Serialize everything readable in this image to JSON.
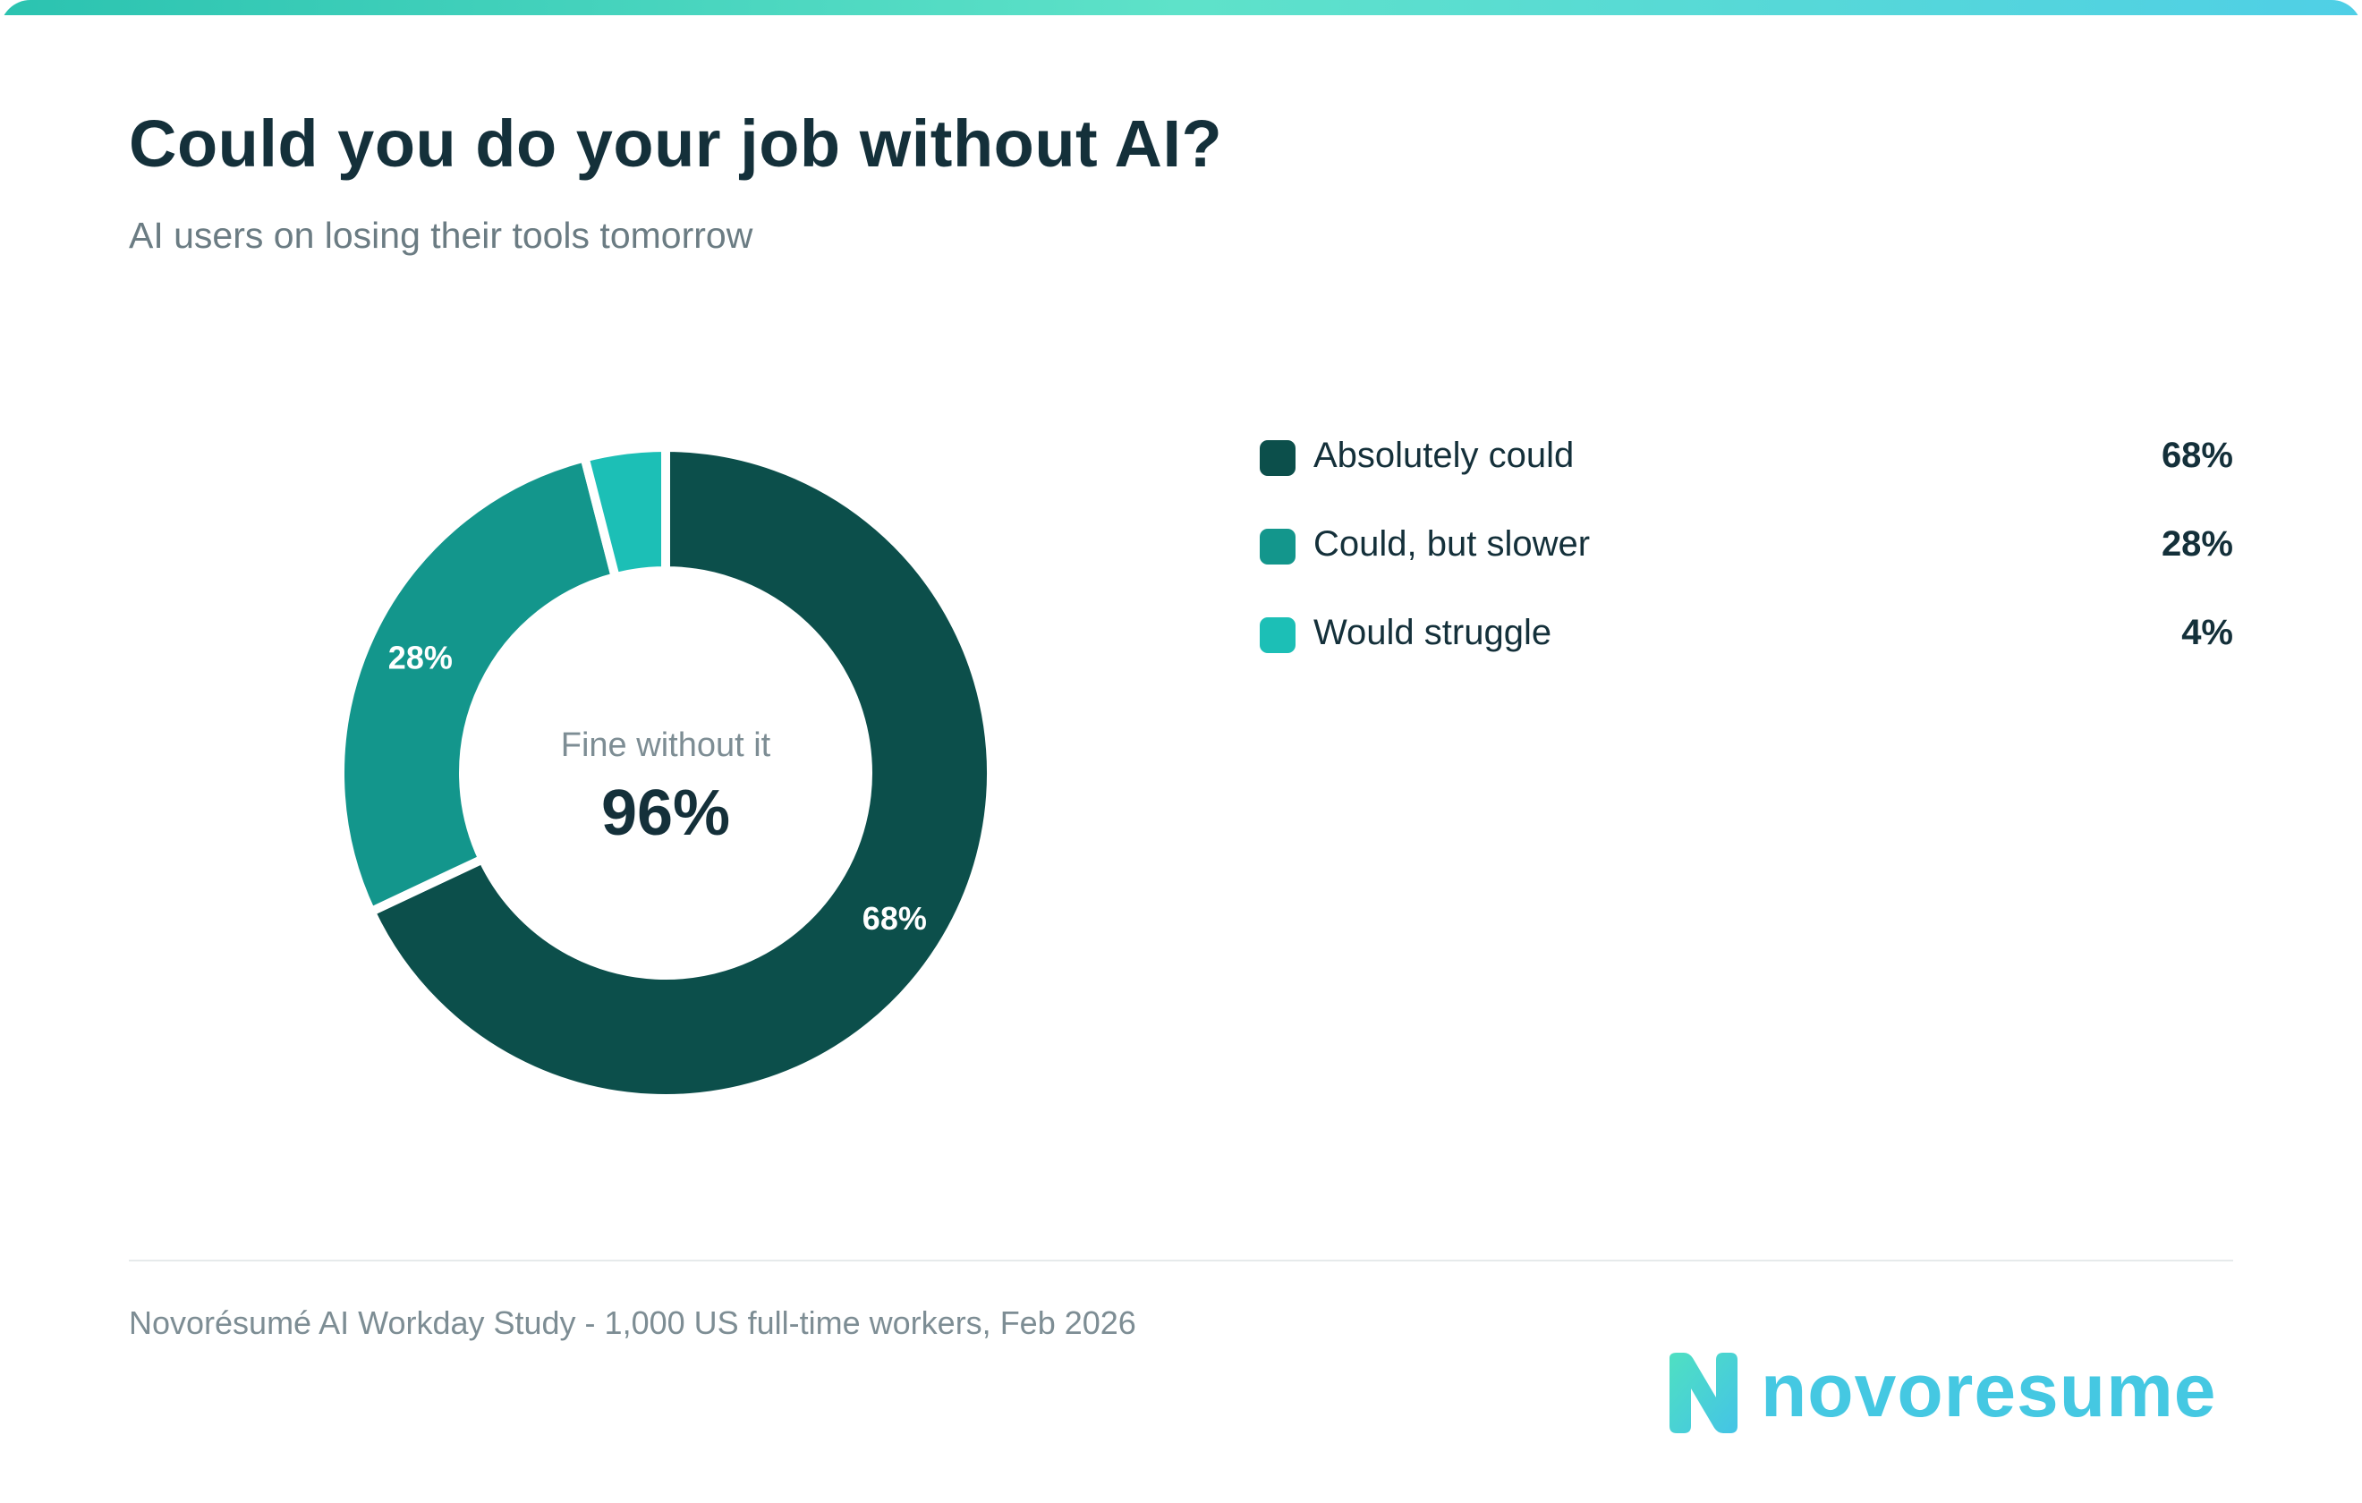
{
  "header": {
    "title": "Could you do your job without AI?",
    "subtitle": "AI users on losing their tools tomorrow"
  },
  "center": {
    "label": "Fine without it",
    "value": "96%"
  },
  "footer": {
    "source": "Novorésumé AI Workday Study - 1,000 US full-time workers, Feb 2026"
  },
  "logo": {
    "text": "novoresume"
  },
  "colors": {
    "accent_gradient": [
      "#2bc3b0",
      "#5ee2c9",
      "#4fcfe6"
    ],
    "logo": "#45c8e2"
  },
  "chart_data": {
    "type": "pie",
    "categories": [
      "Absolutely could",
      "Could, but slower",
      "Would struggle"
    ],
    "values": [
      68,
      28,
      4
    ],
    "labels": [
      "68%",
      "28%",
      "4%"
    ],
    "slice_labels": [
      "68%",
      "28%",
      ""
    ],
    "colors": [
      "#0c4f4b",
      "#13968c",
      "#1cbfb6"
    ],
    "title": "Could you do your job without AI?",
    "subtitle": "AI users on losing their tools tomorrow",
    "legend_placement": "right"
  }
}
